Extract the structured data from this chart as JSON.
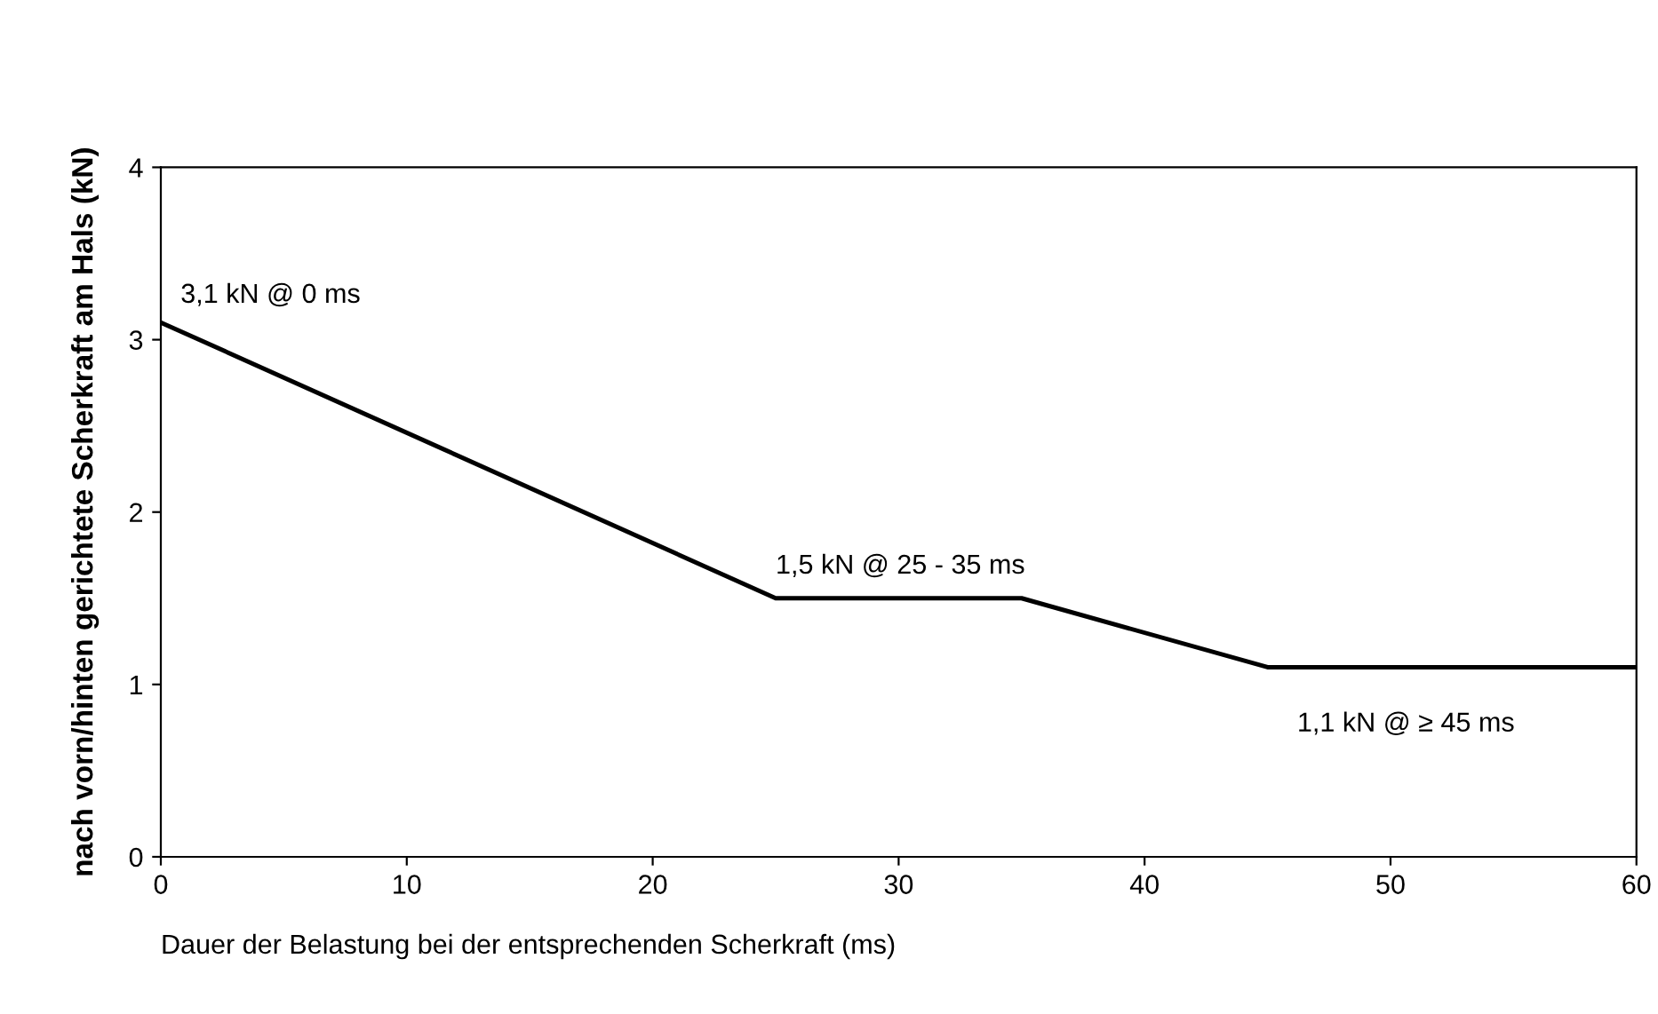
{
  "chart_data": {
    "type": "line",
    "xlabel": "Dauer der Belastung bei der entsprechenden Scherkraft (ms)",
    "ylabel": "nach vorn/hinten gerichtete Scherkraft am Hals (kN)",
    "x": [
      0,
      25,
      35,
      45,
      60
    ],
    "series": [
      {
        "color": "#000000",
        "values": [
          3.1,
          1.5,
          1.5,
          1.1,
          1.1
        ]
      }
    ],
    "xlim": [
      0,
      60
    ],
    "ylim": [
      0,
      4
    ],
    "xticks": [
      0,
      10,
      20,
      30,
      40,
      50,
      60
    ],
    "yticks": [
      0,
      1,
      2,
      3,
      4
    ],
    "grid": false,
    "legend": false,
    "marker": "none",
    "line_style": "solid",
    "annotations": [
      {
        "text": "3,1 kN @ 0 ms",
        "x": 0,
        "y": 3.1
      },
      {
        "text": "1,5 kN @ 25 - 35 ms",
        "x": 25,
        "y": 1.5
      },
      {
        "text": "1,1 kN @ ≥ 45 ms",
        "x": 45,
        "y": 1.1
      }
    ]
  }
}
